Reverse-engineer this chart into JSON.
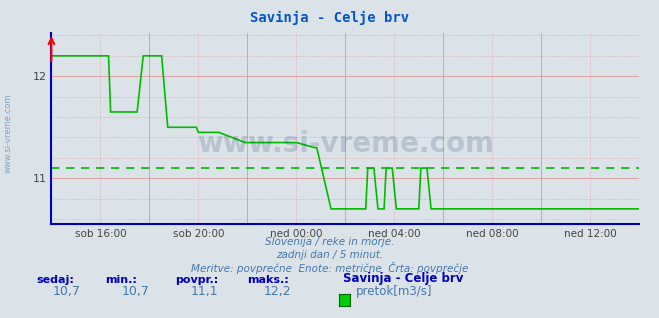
{
  "title": "Savinja - Celje brv",
  "title_color": "#0055cc",
  "bg_color": "#dce3e8",
  "plot_bg_color": "#dce3e8",
  "line_color": "#00bb00",
  "avg_line_color": "#00bb00",
  "avg_value": 11.1,
  "ymin": 10.7,
  "ymax": 12.2,
  "ylim_bottom": 10.55,
  "ylim_top": 12.42,
  "grid_color": "#dd8888",
  "axis_color": "#0000bb",
  "tick_color": "#444444",
  "x_labels": [
    "sob 16:00",
    "sob 20:00",
    "ned 00:00",
    "ned 04:00",
    "ned 08:00",
    "ned 12:00"
  ],
  "x_tick_indices": [
    24,
    72,
    120,
    168,
    216,
    264
  ],
  "n_points": 289,
  "footer_line1": "Slovenija / reke in morje.",
  "footer_line2": "zadnji dan / 5 minut.",
  "footer_line3": "Meritve: povprečne  Enote: metrične  Črta: povprečje",
  "footer_color": "#4477aa",
  "stat_label_color": "#0000bb",
  "stat_value_color": "#4477aa",
  "stat_labels": [
    "sedaj:",
    "min.:",
    "povpr.:",
    "maks.:"
  ],
  "stat_values": [
    "10,7",
    "10,7",
    "11,1",
    "12,2"
  ],
  "legend_title": "Savinja - Celje brv",
  "legend_label": "pretok[m3/s]",
  "legend_color": "#00cc00",
  "watermark": "www.si-vreme.com",
  "watermark_color": "#1a3a6a",
  "sidebar_text": "www.si-vreme.com",
  "sidebar_color": "#4477aa"
}
